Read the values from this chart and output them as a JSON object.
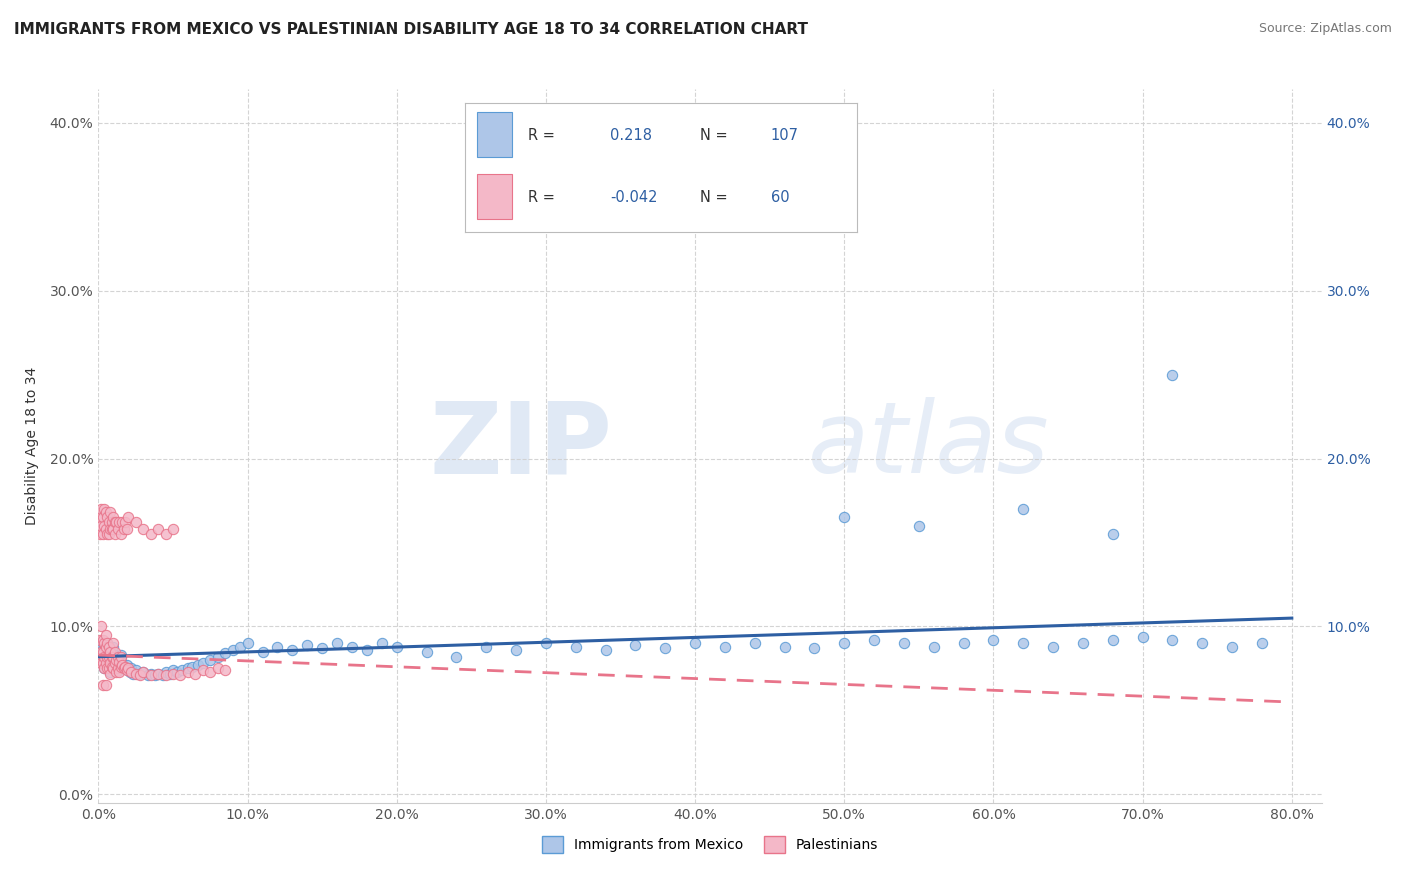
{
  "title": "IMMIGRANTS FROM MEXICO VS PALESTINIAN DISABILITY AGE 18 TO 34 CORRELATION CHART",
  "source": "Source: ZipAtlas.com",
  "ylabel_label": "Disability Age 18 to 34",
  "xlim": [
    0.0,
    0.82
  ],
  "ylim": [
    -0.005,
    0.42
  ],
  "xticks": [
    0.0,
    0.1,
    0.2,
    0.3,
    0.4,
    0.5,
    0.6,
    0.7,
    0.8
  ],
  "yticks": [
    0.0,
    0.1,
    0.2,
    0.3,
    0.4
  ],
  "xticklabels": [
    "0.0%",
    "",
    "",
    "",
    "",
    "",
    "",
    "",
    "80.0%"
  ],
  "yticklabels": [
    "",
    "10.0%",
    "20.0%",
    "30.0%",
    "40.0%"
  ],
  "watermark_zip": "ZIP",
  "watermark_atlas": "atlas",
  "background_color": "#ffffff",
  "grid_color": "#d0d0d0",
  "scatter_mexico_color": "#aec6e8",
  "scatter_mexico_edge": "#5b9bd5",
  "scatter_palestine_color": "#f4b8c8",
  "scatter_palestine_edge": "#e8748a",
  "trend_mexico_color": "#2e5fa3",
  "trend_palestine_color": "#e8748a",
  "mexico_line_y_start": 0.082,
  "mexico_line_y_end": 0.105,
  "palestine_line_y_start": 0.083,
  "palestine_line_y_end": 0.055,
  "legend_R1": "0.218",
  "legend_N1": "107",
  "legend_R2": "-0.042",
  "legend_N2": "60",
  "legend_color": "#2e5fa3",
  "mexico_x": [
    0.001,
    0.002,
    0.003,
    0.003,
    0.004,
    0.004,
    0.005,
    0.005,
    0.006,
    0.006,
    0.006,
    0.007,
    0.007,
    0.007,
    0.008,
    0.008,
    0.008,
    0.009,
    0.009,
    0.01,
    0.01,
    0.01,
    0.011,
    0.011,
    0.012,
    0.012,
    0.013,
    0.013,
    0.014,
    0.014,
    0.015,
    0.015,
    0.016,
    0.017,
    0.018,
    0.019,
    0.02,
    0.021,
    0.022,
    0.023,
    0.025,
    0.027,
    0.03,
    0.033,
    0.035,
    0.038,
    0.04,
    0.043,
    0.045,
    0.048,
    0.05,
    0.053,
    0.056,
    0.06,
    0.063,
    0.067,
    0.07,
    0.075,
    0.08,
    0.085,
    0.09,
    0.095,
    0.1,
    0.11,
    0.12,
    0.13,
    0.14,
    0.15,
    0.16,
    0.17,
    0.18,
    0.19,
    0.2,
    0.22,
    0.24,
    0.26,
    0.28,
    0.3,
    0.32,
    0.34,
    0.36,
    0.38,
    0.4,
    0.42,
    0.44,
    0.46,
    0.48,
    0.5,
    0.52,
    0.54,
    0.56,
    0.58,
    0.6,
    0.62,
    0.64,
    0.66,
    0.68,
    0.7,
    0.72,
    0.74,
    0.76,
    0.78,
    0.5,
    0.55,
    0.62,
    0.68,
    0.72
  ],
  "mexico_y": [
    0.09,
    0.085,
    0.09,
    0.08,
    0.085,
    0.075,
    0.09,
    0.085,
    0.09,
    0.082,
    0.078,
    0.088,
    0.082,
    0.077,
    0.085,
    0.078,
    0.073,
    0.083,
    0.078,
    0.088,
    0.082,
    0.077,
    0.083,
    0.078,
    0.082,
    0.076,
    0.08,
    0.075,
    0.079,
    0.074,
    0.083,
    0.077,
    0.078,
    0.076,
    0.075,
    0.077,
    0.074,
    0.073,
    0.075,
    0.072,
    0.074,
    0.072,
    0.073,
    0.071,
    0.072,
    0.071,
    0.072,
    0.071,
    0.073,
    0.072,
    0.074,
    0.073,
    0.074,
    0.075,
    0.076,
    0.077,
    0.078,
    0.08,
    0.082,
    0.084,
    0.086,
    0.088,
    0.09,
    0.085,
    0.088,
    0.086,
    0.089,
    0.087,
    0.09,
    0.088,
    0.086,
    0.09,
    0.088,
    0.085,
    0.082,
    0.088,
    0.086,
    0.09,
    0.088,
    0.086,
    0.089,
    0.087,
    0.09,
    0.088,
    0.09,
    0.088,
    0.087,
    0.09,
    0.092,
    0.09,
    0.088,
    0.09,
    0.092,
    0.09,
    0.088,
    0.09,
    0.092,
    0.094,
    0.092,
    0.09,
    0.088,
    0.09,
    0.165,
    0.16,
    0.17,
    0.155,
    0.25
  ],
  "palestine_x": [
    0.001,
    0.001,
    0.002,
    0.002,
    0.002,
    0.003,
    0.003,
    0.003,
    0.003,
    0.004,
    0.004,
    0.004,
    0.005,
    0.005,
    0.005,
    0.005,
    0.006,
    0.006,
    0.006,
    0.007,
    0.007,
    0.007,
    0.008,
    0.008,
    0.008,
    0.009,
    0.009,
    0.01,
    0.01,
    0.01,
    0.011,
    0.011,
    0.012,
    0.012,
    0.013,
    0.013,
    0.014,
    0.014,
    0.015,
    0.015,
    0.016,
    0.017,
    0.018,
    0.019,
    0.02,
    0.022,
    0.025,
    0.028,
    0.03,
    0.035,
    0.04,
    0.045,
    0.05,
    0.055,
    0.06,
    0.065,
    0.07,
    0.075,
    0.08,
    0.085
  ],
  "palestine_y": [
    0.08,
    0.092,
    0.085,
    0.078,
    0.1,
    0.085,
    0.092,
    0.078,
    0.065,
    0.09,
    0.082,
    0.075,
    0.088,
    0.095,
    0.078,
    0.065,
    0.09,
    0.082,
    0.075,
    0.088,
    0.082,
    0.075,
    0.085,
    0.078,
    0.072,
    0.082,
    0.076,
    0.09,
    0.082,
    0.075,
    0.085,
    0.078,
    0.08,
    0.073,
    0.082,
    0.075,
    0.079,
    0.073,
    0.082,
    0.076,
    0.077,
    0.075,
    0.076,
    0.074,
    0.075,
    0.073,
    0.072,
    0.071,
    0.073,
    0.071,
    0.072,
    0.071,
    0.072,
    0.071,
    0.073,
    0.072,
    0.074,
    0.073,
    0.075,
    0.074
  ],
  "palestine_x_high": [
    0.001,
    0.001,
    0.002,
    0.002,
    0.003,
    0.003,
    0.004,
    0.004,
    0.005,
    0.005,
    0.006,
    0.006,
    0.007,
    0.007,
    0.008,
    0.008,
    0.009,
    0.009,
    0.01,
    0.01,
    0.011,
    0.011,
    0.012,
    0.013,
    0.014,
    0.015,
    0.016,
    0.017,
    0.018,
    0.019,
    0.02,
    0.025,
    0.03,
    0.035,
    0.04,
    0.045,
    0.05
  ],
  "palestine_y_high": [
    0.165,
    0.155,
    0.17,
    0.16,
    0.165,
    0.155,
    0.17,
    0.16,
    0.168,
    0.158,
    0.165,
    0.155,
    0.162,
    0.155,
    0.168,
    0.158,
    0.162,
    0.158,
    0.165,
    0.158,
    0.162,
    0.155,
    0.162,
    0.158,
    0.162,
    0.155,
    0.162,
    0.158,
    0.162,
    0.158,
    0.165,
    0.162,
    0.158,
    0.155,
    0.158,
    0.155,
    0.158
  ]
}
